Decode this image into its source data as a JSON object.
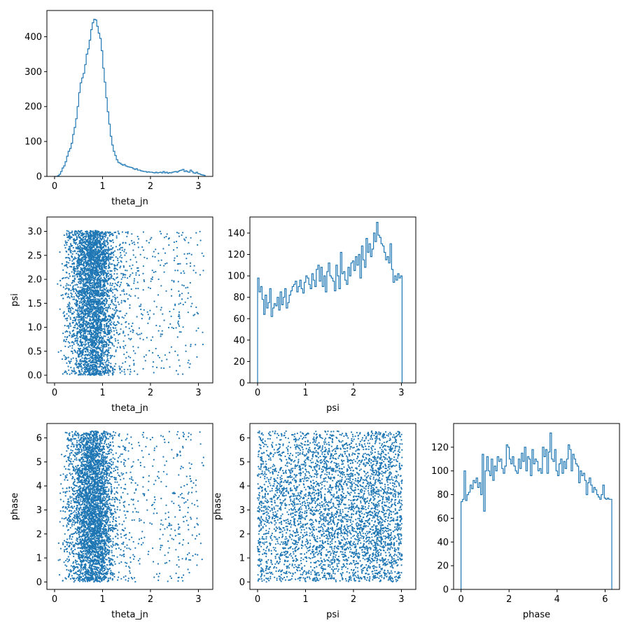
{
  "colors": {
    "series": "#1f77b4",
    "axes": "#000000",
    "background": "#ffffff"
  },
  "chart_data": [
    {
      "panel": "theta_jn-hist",
      "type": "bar",
      "histtype": "step",
      "xlabel": "theta_jn",
      "ylabel": "",
      "xlim": [
        -0.16,
        3.3
      ],
      "ylim": [
        0,
        475
      ],
      "xticks": [
        0,
        1,
        2,
        3
      ],
      "yticks": [
        0,
        100,
        200,
        300,
        400
      ],
      "grid": false,
      "bin_start": 0.0,
      "bin_width": 0.0314,
      "values": [
        0,
        0,
        2,
        6,
        14,
        24,
        30,
        42,
        58,
        72,
        80,
        95,
        120,
        140,
        165,
        200,
        240,
        268,
        282,
        295,
        320,
        350,
        365,
        390,
        420,
        440,
        450,
        448,
        430,
        410,
        395,
        360,
        310,
        270,
        225,
        185,
        150,
        115,
        90,
        72,
        60,
        48,
        40,
        38,
        35,
        32,
        34,
        30,
        28,
        27,
        26,
        25,
        22,
        20,
        22,
        18,
        18,
        16,
        15,
        14,
        14,
        12,
        13,
        12,
        12,
        11,
        10,
        12,
        10,
        11,
        12,
        10,
        14,
        10,
        12,
        9,
        11,
        10,
        12,
        13,
        14,
        12,
        15,
        17,
        18,
        20,
        14,
        16,
        13,
        12,
        18,
        14,
        10,
        9,
        12,
        8,
        7,
        5,
        4,
        3
      ]
    },
    {
      "panel": "psi-vs-theta_jn",
      "type": "scatter",
      "xlabel": "theta_jn",
      "ylabel": "psi",
      "xlim": [
        -0.16,
        3.3
      ],
      "ylim": [
        -0.16,
        3.3
      ],
      "xticks": [
        0,
        1,
        2,
        3
      ],
      "yticks": [
        0.0,
        0.5,
        1.0,
        1.5,
        2.0,
        2.5,
        3.0
      ],
      "grid": false
    },
    {
      "panel": "psi-hist",
      "type": "bar",
      "histtype": "step",
      "xlabel": "psi",
      "ylabel": "",
      "xlim": [
        -0.16,
        3.3
      ],
      "ylim": [
        0,
        155
      ],
      "xticks": [
        0,
        1,
        2,
        3
      ],
      "yticks": [
        0,
        20,
        40,
        60,
        80,
        100,
        120,
        140
      ],
      "grid": false,
      "bin_start": 0.0,
      "bin_width": 0.0314,
      "values": [
        98,
        85,
        90,
        78,
        64,
        82,
        70,
        75,
        88,
        62,
        70,
        74,
        72,
        80,
        68,
        85,
        73,
        80,
        88,
        70,
        75,
        82,
        86,
        90,
        92,
        95,
        85,
        90,
        96,
        88,
        84,
        94,
        100,
        98,
        92,
        88,
        102,
        96,
        90,
        106,
        110,
        95,
        108,
        90,
        100,
        85,
        104,
        112,
        100,
        98,
        95,
        86,
        110,
        100,
        88,
        122,
        102,
        104,
        96,
        92,
        108,
        100,
        112,
        114,
        105,
        118,
        110,
        120,
        98,
        128,
        115,
        108,
        135,
        122,
        130,
        118,
        125,
        140,
        132,
        150,
        138,
        136,
        130,
        128,
        122,
        115,
        118,
        112,
        130,
        106,
        94,
        100,
        96,
        102,
        98,
        100
      ]
    },
    {
      "panel": "phase-vs-theta_jn",
      "type": "scatter",
      "xlabel": "theta_jn",
      "ylabel": "phase",
      "xlim": [
        -0.16,
        3.3
      ],
      "ylim": [
        -0.31,
        6.6
      ],
      "xticks": [
        0,
        1,
        2,
        3
      ],
      "yticks": [
        0,
        1,
        2,
        3,
        4,
        5,
        6
      ],
      "grid": false
    },
    {
      "panel": "phase-vs-psi",
      "type": "scatter",
      "xlabel": "psi",
      "ylabel": "phase",
      "xlim": [
        -0.16,
        3.3
      ],
      "ylim": [
        -0.31,
        6.6
      ],
      "xticks": [
        0,
        1,
        2,
        3
      ],
      "yticks": [
        0,
        1,
        2,
        3,
        4,
        5,
        6
      ],
      "grid": false
    },
    {
      "panel": "phase-hist",
      "type": "bar",
      "histtype": "step",
      "xlabel": "phase",
      "ylabel": "",
      "xlim": [
        -0.31,
        6.6
      ],
      "ylim": [
        0,
        140
      ],
      "xticks": [
        0,
        2,
        4,
        6
      ],
      "yticks": [
        0,
        20,
        40,
        60,
        80,
        100,
        120
      ],
      "grid": false,
      "bin_start": 0.0,
      "bin_width": 0.0628,
      "values": [
        74,
        76,
        100,
        75,
        80,
        82,
        88,
        85,
        92,
        90,
        94,
        86,
        90,
        80,
        114,
        66,
        100,
        112,
        100,
        96,
        110,
        92,
        104,
        100,
        112,
        108,
        110,
        102,
        98,
        104,
        122,
        120,
        110,
        106,
        112,
        104,
        100,
        98,
        110,
        102,
        115,
        108,
        120,
        100,
        112,
        110,
        96,
        118,
        106,
        110,
        108,
        100,
        102,
        98,
        120,
        112,
        118,
        98,
        116,
        132,
        110,
        108,
        118,
        100,
        96,
        106,
        110,
        98,
        108,
        102,
        110,
        122,
        118,
        100,
        114,
        110,
        106,
        104,
        90,
        100,
        96,
        98,
        92,
        80,
        90,
        94,
        88,
        82,
        86,
        84,
        80,
        78,
        76,
        80,
        88,
        77,
        76,
        77,
        76,
        76
      ]
    }
  ]
}
